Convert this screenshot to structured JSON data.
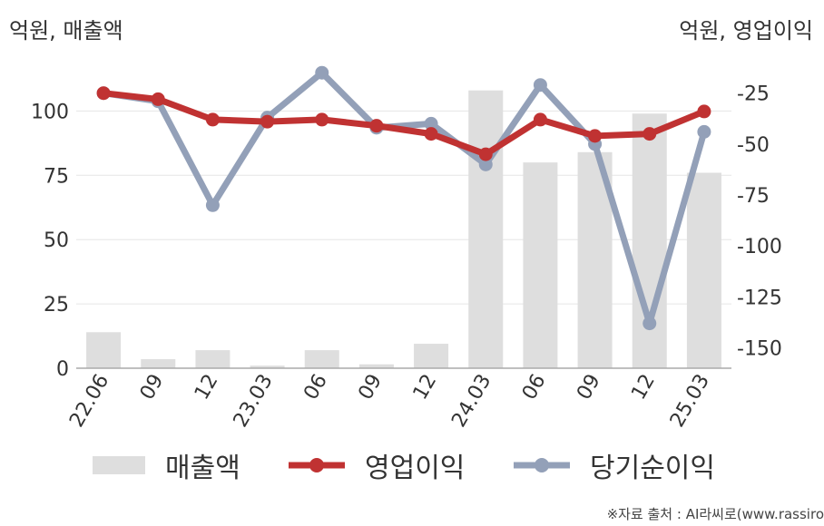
{
  "units": {
    "left": "억원, 매출액",
    "right": "억원, 영업이익"
  },
  "legend": {
    "sales": "매출액",
    "op": "영업이익",
    "net": "당기순이익"
  },
  "source": "※자료 출처 : AI라씨로(www.rassiro",
  "colors": {
    "sales": "#dedede",
    "op": "#c03232",
    "net": "#93a0b8",
    "axis": "#aaaaaa",
    "grid": "#e6e6e6"
  },
  "chart_data": {
    "type": "bar+line",
    "categories": [
      "22.06",
      "09",
      "12",
      "23.03",
      "06",
      "09",
      "12",
      "24.03",
      "06",
      "09",
      "12",
      "25.03"
    ],
    "left_axis": {
      "ticks": [
        0,
        25,
        50,
        75,
        100
      ],
      "ylim": [
        0,
        122
      ]
    },
    "right_axis": {
      "ticks": [
        -25,
        -50,
        -75,
        -100,
        -125,
        -150
      ],
      "ylim": [
        -160,
        -6
      ]
    },
    "series": [
      {
        "name": "매출액",
        "type": "bar",
        "axis": "left",
        "values": [
          14,
          3.5,
          7,
          1,
          7,
          1.5,
          9.5,
          108,
          80,
          84,
          99,
          76
        ]
      },
      {
        "name": "영업이익",
        "type": "line",
        "axis": "right",
        "values": [
          -25,
          -28,
          -38,
          -39,
          -38,
          -41,
          -45,
          -55,
          -38,
          -46,
          -45,
          -34
        ]
      },
      {
        "name": "당기순이익",
        "type": "line",
        "axis": "right",
        "values": [
          -25,
          -29,
          -80,
          -37,
          -15,
          -42,
          -40,
          -60,
          -21,
          -50,
          -138,
          -44
        ]
      }
    ]
  }
}
